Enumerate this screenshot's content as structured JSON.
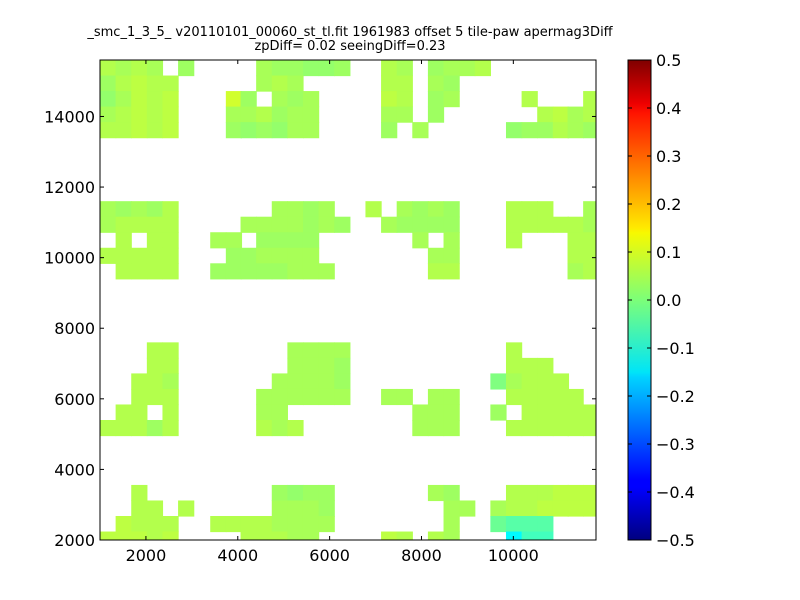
{
  "chart_data": {
    "type": "heatmap",
    "title": "_smc_1_3_5_ v20110101_00060_st_tl.fit 1961983 offset 5 tile-paw apermag3Diff",
    "subtitle": "zpDiff= 0.02 seeingDiff=0.23",
    "xlabel": "",
    "ylabel": "",
    "xlim": [
      1000,
      11800
    ],
    "ylim": [
      2000,
      15600
    ],
    "xticks": [
      2000,
      4000,
      6000,
      8000,
      10000
    ],
    "yticks": [
      2000,
      4000,
      6000,
      8000,
      10000,
      12000,
      14000
    ],
    "colorbar": {
      "range": [
        -0.5,
        0.5
      ],
      "ticks": [
        "0.5",
        "0.4",
        "0.3",
        "0.2",
        "0.1",
        "0.0",
        "−0.1",
        "−0.2",
        "−0.3",
        "−0.4",
        "−0.5"
      ],
      "colormap": "jet"
    },
    "cell_size": [
      340,
      440
    ],
    "cells": [
      [
        1000,
        15600,
        0.05
      ],
      [
        1340,
        15600,
        0.04
      ],
      [
        1680,
        15600,
        0.05
      ],
      [
        2020,
        15600,
        0.04
      ],
      [
        2700,
        15600,
        0.03
      ],
      [
        4400,
        15600,
        0.04
      ],
      [
        4740,
        15600,
        0.03
      ],
      [
        5080,
        15600,
        0.03
      ],
      [
        5420,
        15600,
        0.02
      ],
      [
        5760,
        15600,
        0.02
      ],
      [
        6100,
        15600,
        0.03
      ],
      [
        7120,
        15600,
        0.05
      ],
      [
        7460,
        15600,
        0.04
      ],
      [
        8140,
        15600,
        0.03
      ],
      [
        8480,
        15600,
        0.04
      ],
      [
        8820,
        15600,
        0.04
      ],
      [
        9160,
        15600,
        0.05
      ],
      [
        1000,
        15160,
        0.03
      ],
      [
        1340,
        15160,
        0.05
      ],
      [
        1680,
        15160,
        0.06
      ],
      [
        2020,
        15160,
        0.05
      ],
      [
        2360,
        15160,
        0.05
      ],
      [
        4400,
        15160,
        0.04
      ],
      [
        4740,
        15160,
        0.05
      ],
      [
        5080,
        15160,
        0.04
      ],
      [
        7120,
        15160,
        0.05
      ],
      [
        7460,
        15160,
        0.05
      ],
      [
        8140,
        15160,
        0.04
      ],
      [
        8480,
        15160,
        0.03
      ],
      [
        1000,
        14720,
        0.02
      ],
      [
        1340,
        14720,
        0.04
      ],
      [
        1680,
        14720,
        0.06
      ],
      [
        2020,
        14720,
        0.05
      ],
      [
        2360,
        14720,
        0.06
      ],
      [
        3740,
        14720,
        0.08
      ],
      [
        4060,
        14720,
        0.03
      ],
      [
        4740,
        14720,
        0.04
      ],
      [
        5080,
        14720,
        0.03
      ],
      [
        5420,
        14720,
        0.04
      ],
      [
        7120,
        14720,
        0.06
      ],
      [
        7460,
        14720,
        0.05
      ],
      [
        8140,
        14720,
        0.03
      ],
      [
        8480,
        14720,
        0.04
      ],
      [
        10180,
        14720,
        0.05
      ],
      [
        11520,
        14720,
        0.05
      ],
      [
        1000,
        14280,
        0.04
      ],
      [
        1340,
        14280,
        0.05
      ],
      [
        1680,
        14280,
        0.06
      ],
      [
        2020,
        14280,
        0.05
      ],
      [
        2360,
        14280,
        0.06
      ],
      [
        3740,
        14280,
        0.04
      ],
      [
        4060,
        14280,
        0.04
      ],
      [
        4400,
        14280,
        0.05
      ],
      [
        4740,
        14280,
        0.03
      ],
      [
        5080,
        14280,
        0.04
      ],
      [
        5420,
        14280,
        0.04
      ],
      [
        7120,
        14280,
        0.04
      ],
      [
        7460,
        14280,
        0.04
      ],
      [
        8140,
        14280,
        0.03
      ],
      [
        10520,
        14280,
        0.05
      ],
      [
        10860,
        14280,
        0.06
      ],
      [
        11180,
        14280,
        0.04
      ],
      [
        11520,
        14280,
        0.05
      ],
      [
        1000,
        13840,
        0.05
      ],
      [
        1340,
        13840,
        0.05
      ],
      [
        1680,
        13840,
        0.06
      ],
      [
        2020,
        13840,
        0.05
      ],
      [
        2360,
        13840,
        0.06
      ],
      [
        3740,
        13840,
        0.03
      ],
      [
        4060,
        13840,
        0.02
      ],
      [
        4400,
        13840,
        0.03
      ],
      [
        4740,
        13840,
        0.02
      ],
      [
        5080,
        13840,
        0.04
      ],
      [
        5420,
        13840,
        0.04
      ],
      [
        7120,
        13840,
        0.03
      ],
      [
        7800,
        13840,
        0.04
      ],
      [
        9840,
        13840,
        0.02
      ],
      [
        10180,
        13840,
        0.03
      ],
      [
        10520,
        13840,
        0.03
      ],
      [
        10860,
        13840,
        0.05
      ],
      [
        11180,
        13840,
        0.04
      ],
      [
        11520,
        13840,
        0.03
      ],
      [
        1000,
        11600,
        0.04
      ],
      [
        1340,
        11600,
        0.03
      ],
      [
        1680,
        11600,
        0.04
      ],
      [
        2020,
        11600,
        0.03
      ],
      [
        2360,
        11600,
        0.05
      ],
      [
        4740,
        11600,
        0.04
      ],
      [
        5080,
        11600,
        0.04
      ],
      [
        5420,
        11600,
        0.03
      ],
      [
        5760,
        11600,
        0.04
      ],
      [
        6780,
        11600,
        0.05
      ],
      [
        7460,
        11600,
        0.04
      ],
      [
        7800,
        11600,
        0.03
      ],
      [
        8140,
        11600,
        0.04
      ],
      [
        8480,
        11600,
        0.03
      ],
      [
        9840,
        11600,
        0.05
      ],
      [
        10180,
        11600,
        0.05
      ],
      [
        10520,
        11600,
        0.05
      ],
      [
        11520,
        11600,
        0.04
      ],
      [
        1000,
        11160,
        0.04
      ],
      [
        1340,
        11160,
        0.05
      ],
      [
        1680,
        11160,
        0.05
      ],
      [
        2020,
        11160,
        0.05
      ],
      [
        2360,
        11160,
        0.05
      ],
      [
        4060,
        11160,
        0.04
      ],
      [
        4400,
        11160,
        0.04
      ],
      [
        4740,
        11160,
        0.04
      ],
      [
        5080,
        11160,
        0.04
      ],
      [
        5420,
        11160,
        0.03
      ],
      [
        5760,
        11160,
        0.04
      ],
      [
        6100,
        11160,
        0.03
      ],
      [
        7120,
        11160,
        0.04
      ],
      [
        7460,
        11160,
        0.03
      ],
      [
        7800,
        11160,
        0.03
      ],
      [
        8140,
        11160,
        0.03
      ],
      [
        8480,
        11160,
        0.03
      ],
      [
        9840,
        11160,
        0.05
      ],
      [
        10180,
        11160,
        0.05
      ],
      [
        10520,
        11160,
        0.05
      ],
      [
        10860,
        11160,
        0.05
      ],
      [
        11180,
        11160,
        0.05
      ],
      [
        11520,
        11160,
        0.04
      ],
      [
        1340,
        10720,
        0.05
      ],
      [
        2020,
        10720,
        0.05
      ],
      [
        2360,
        10720,
        0.05
      ],
      [
        3400,
        10720,
        0.04
      ],
      [
        3740,
        10720,
        0.04
      ],
      [
        4400,
        10720,
        0.03
      ],
      [
        4740,
        10720,
        0.03
      ],
      [
        5080,
        10720,
        0.03
      ],
      [
        5420,
        10720,
        0.03
      ],
      [
        7800,
        10720,
        0.04
      ],
      [
        8480,
        10720,
        0.04
      ],
      [
        9840,
        10720,
        0.05
      ],
      [
        11180,
        10720,
        0.05
      ],
      [
        11520,
        10720,
        0.05
      ],
      [
        1000,
        10280,
        0.05
      ],
      [
        1340,
        10280,
        0.05
      ],
      [
        1680,
        10280,
        0.05
      ],
      [
        2020,
        10280,
        0.05
      ],
      [
        2360,
        10280,
        0.05
      ],
      [
        3740,
        10280,
        0.03
      ],
      [
        4060,
        10280,
        0.03
      ],
      [
        4400,
        10280,
        0.04
      ],
      [
        4740,
        10280,
        0.04
      ],
      [
        5080,
        10280,
        0.04
      ],
      [
        5420,
        10280,
        0.04
      ],
      [
        8140,
        10280,
        0.04
      ],
      [
        8480,
        10280,
        0.04
      ],
      [
        11180,
        10280,
        0.05
      ],
      [
        11520,
        10280,
        0.05
      ],
      [
        1340,
        9840,
        0.05
      ],
      [
        1680,
        9840,
        0.05
      ],
      [
        2020,
        9840,
        0.05
      ],
      [
        2360,
        9840,
        0.05
      ],
      [
        3400,
        9840,
        0.03
      ],
      [
        3740,
        9840,
        0.03
      ],
      [
        4060,
        9840,
        0.03
      ],
      [
        4400,
        9840,
        0.03
      ],
      [
        4740,
        9840,
        0.03
      ],
      [
        5080,
        9840,
        0.04
      ],
      [
        5420,
        9840,
        0.04
      ],
      [
        5760,
        9840,
        0.04
      ],
      [
        8140,
        9840,
        0.05
      ],
      [
        8480,
        9840,
        0.05
      ],
      [
        11180,
        9840,
        0.04
      ],
      [
        11520,
        9840,
        0.05
      ],
      [
        2020,
        7600,
        0.05
      ],
      [
        2360,
        7600,
        0.05
      ],
      [
        5080,
        7600,
        0.04
      ],
      [
        5420,
        7600,
        0.04
      ],
      [
        5760,
        7600,
        0.04
      ],
      [
        6100,
        7600,
        0.04
      ],
      [
        9840,
        7600,
        0.05
      ],
      [
        2020,
        7160,
        0.05
      ],
      [
        2360,
        7160,
        0.05
      ],
      [
        5080,
        7160,
        0.04
      ],
      [
        5420,
        7160,
        0.04
      ],
      [
        5760,
        7160,
        0.04
      ],
      [
        6100,
        7160,
        0.03
      ],
      [
        9840,
        7160,
        0.05
      ],
      [
        10180,
        7160,
        0.05
      ],
      [
        10520,
        7160,
        0.05
      ],
      [
        1680,
        6720,
        0.05
      ],
      [
        2020,
        6720,
        0.05
      ],
      [
        2360,
        6720,
        0.04
      ],
      [
        4740,
        6720,
        0.04
      ],
      [
        5080,
        6720,
        0.04
      ],
      [
        5420,
        6720,
        0.04
      ],
      [
        5760,
        6720,
        0.04
      ],
      [
        6100,
        6720,
        0.03
      ],
      [
        9500,
        6720,
        0.0
      ],
      [
        9840,
        6720,
        0.04
      ],
      [
        10180,
        6720,
        0.05
      ],
      [
        10520,
        6720,
        0.05
      ],
      [
        10860,
        6720,
        0.05
      ],
      [
        1680,
        6280,
        0.05
      ],
      [
        2020,
        6280,
        0.05
      ],
      [
        2360,
        6280,
        0.05
      ],
      [
        4400,
        6280,
        0.04
      ],
      [
        4740,
        6280,
        0.04
      ],
      [
        5080,
        6280,
        0.04
      ],
      [
        5420,
        6280,
        0.04
      ],
      [
        5760,
        6280,
        0.04
      ],
      [
        6100,
        6280,
        0.04
      ],
      [
        7120,
        6280,
        0.04
      ],
      [
        7460,
        6280,
        0.04
      ],
      [
        8140,
        6280,
        0.04
      ],
      [
        8480,
        6280,
        0.04
      ],
      [
        9840,
        6280,
        0.05
      ],
      [
        10180,
        6280,
        0.05
      ],
      [
        10520,
        6280,
        0.05
      ],
      [
        10860,
        6280,
        0.05
      ],
      [
        11180,
        6280,
        0.05
      ],
      [
        1340,
        5840,
        0.05
      ],
      [
        1680,
        5840,
        0.05
      ],
      [
        2360,
        5840,
        0.05
      ],
      [
        4400,
        5840,
        0.04
      ],
      [
        4740,
        5840,
        0.04
      ],
      [
        7800,
        5840,
        0.04
      ],
      [
        8140,
        5840,
        0.04
      ],
      [
        8480,
        5840,
        0.04
      ],
      [
        9500,
        5840,
        0.03
      ],
      [
        10180,
        5840,
        0.05
      ],
      [
        10520,
        5840,
        0.05
      ],
      [
        10860,
        5840,
        0.05
      ],
      [
        11180,
        5840,
        0.05
      ],
      [
        11520,
        5840,
        0.05
      ],
      [
        1000,
        5400,
        0.05
      ],
      [
        1340,
        5400,
        0.05
      ],
      [
        1680,
        5400,
        0.05
      ],
      [
        2020,
        5400,
        0.03
      ],
      [
        2360,
        5400,
        0.05
      ],
      [
        4400,
        5400,
        0.05
      ],
      [
        4740,
        5400,
        0.04
      ],
      [
        5080,
        5400,
        0.05
      ],
      [
        7800,
        5400,
        0.04
      ],
      [
        8140,
        5400,
        0.04
      ],
      [
        8480,
        5400,
        0.04
      ],
      [
        9840,
        5400,
        0.05
      ],
      [
        10180,
        5400,
        0.05
      ],
      [
        10520,
        5400,
        0.05
      ],
      [
        10860,
        5400,
        0.05
      ],
      [
        11180,
        5400,
        0.05
      ],
      [
        11520,
        5400,
        0.05
      ],
      [
        1680,
        3560,
        0.05
      ],
      [
        4740,
        3560,
        0.03
      ],
      [
        5080,
        3560,
        0.02
      ],
      [
        5420,
        3560,
        0.03
      ],
      [
        5760,
        3560,
        0.03
      ],
      [
        8140,
        3560,
        0.04
      ],
      [
        8480,
        3560,
        0.03
      ],
      [
        9840,
        3560,
        0.05
      ],
      [
        10180,
        3560,
        0.05
      ],
      [
        10520,
        3560,
        0.05
      ],
      [
        10860,
        3560,
        0.06
      ],
      [
        11180,
        3560,
        0.06
      ],
      [
        11520,
        3560,
        0.06
      ],
      [
        1680,
        3120,
        0.05
      ],
      [
        2020,
        3120,
        0.05
      ],
      [
        2700,
        3120,
        0.05
      ],
      [
        4740,
        3120,
        0.04
      ],
      [
        5080,
        3120,
        0.04
      ],
      [
        5420,
        3120,
        0.04
      ],
      [
        5760,
        3120,
        0.03
      ],
      [
        8480,
        3120,
        0.04
      ],
      [
        8820,
        3120,
        0.04
      ],
      [
        9500,
        3120,
        0.04
      ],
      [
        9840,
        3120,
        0.05
      ],
      [
        10180,
        3120,
        0.05
      ],
      [
        10520,
        3120,
        0.06
      ],
      [
        10860,
        3120,
        0.06
      ],
      [
        11180,
        3120,
        0.06
      ],
      [
        11520,
        3120,
        0.06
      ],
      [
        1340,
        2680,
        0.06
      ],
      [
        1680,
        2680,
        0.05
      ],
      [
        2020,
        2680,
        0.05
      ],
      [
        2360,
        2680,
        0.05
      ],
      [
        3400,
        2680,
        0.05
      ],
      [
        3740,
        2680,
        0.05
      ],
      [
        4060,
        2680,
        0.05
      ],
      [
        4400,
        2680,
        0.05
      ],
      [
        4740,
        2680,
        0.04
      ],
      [
        5080,
        2680,
        0.04
      ],
      [
        5420,
        2680,
        0.04
      ],
      [
        5760,
        2680,
        0.04
      ],
      [
        8480,
        2680,
        0.04
      ],
      [
        9500,
        2680,
        -0.02
      ],
      [
        9840,
        2680,
        -0.04
      ],
      [
        10180,
        2680,
        -0.04
      ],
      [
        10520,
        2680,
        -0.04
      ],
      [
        1000,
        2240,
        0.06
      ],
      [
        1340,
        2240,
        0.06
      ],
      [
        1680,
        2240,
        0.06
      ],
      [
        2020,
        2240,
        0.05
      ],
      [
        2360,
        2240,
        0.06
      ],
      [
        4060,
        2240,
        0.05
      ],
      [
        4400,
        2240,
        0.05
      ],
      [
        4740,
        2240,
        0.05
      ],
      [
        5080,
        2240,
        0.04
      ],
      [
        5420,
        2240,
        0.04
      ],
      [
        7120,
        2240,
        0.06
      ],
      [
        7460,
        2240,
        0.05
      ],
      [
        8140,
        2240,
        0.05
      ],
      [
        8480,
        2240,
        0.04
      ],
      [
        9840,
        2240,
        -0.13
      ],
      [
        10180,
        2240,
        -0.06
      ],
      [
        10520,
        2240,
        -0.06
      ],
      [
        1000,
        1800,
        0.06
      ],
      [
        1340,
        1800,
        0.06
      ],
      [
        1680,
        1800,
        0.06
      ],
      [
        2020,
        1800,
        0.06
      ],
      [
        2360,
        1800,
        0.06
      ],
      [
        4740,
        1800,
        0.05
      ],
      [
        5080,
        1800,
        0.05
      ],
      [
        5420,
        1800,
        0.04
      ],
      [
        7120,
        1800,
        0.05
      ],
      [
        7800,
        1800,
        0.05
      ],
      [
        8140,
        1800,
        0.05
      ],
      [
        8480,
        1800,
        0.05
      ],
      [
        9500,
        1800,
        -0.03
      ],
      [
        10520,
        1800,
        -0.22
      ]
    ]
  }
}
